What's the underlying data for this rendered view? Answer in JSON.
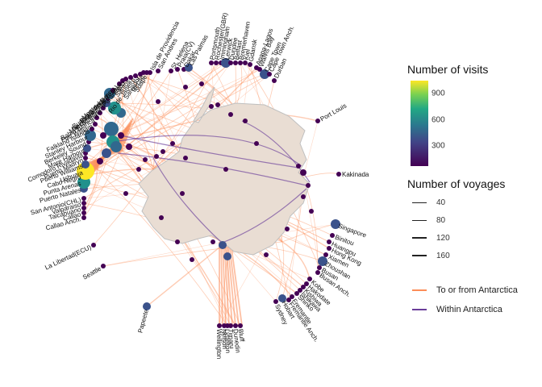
{
  "legend": {
    "visits_title": "Number of visits",
    "visits_ticks": [
      "900",
      "600",
      "300"
    ],
    "visits_tick_values": [
      900,
      600,
      300
    ],
    "visits_max": 1100,
    "visits_colors": [
      "#fde725",
      "#7ad151",
      "#22a884",
      "#2a788e",
      "#414487",
      "#440154"
    ],
    "voyages_title": "Number of voyages",
    "voyages": [
      {
        "label": "40",
        "value": 40
      },
      {
        "label": "80",
        "value": 80
      },
      {
        "label": "120",
        "value": 120
      },
      {
        "label": "160",
        "value": 160
      }
    ],
    "types": [
      {
        "label": "To or from Antarctica",
        "color": "#fc8d59"
      },
      {
        "label": "Within Antarctica",
        "color": "#6a3d9a"
      }
    ]
  },
  "ports": [
    {
      "name": "Isla de Providencia"
    },
    {
      "name": "San Andres"
    },
    {
      "name": "St. Helena"
    },
    {
      "name": "Praia(CV)"
    },
    {
      "name": "Dakar"
    },
    {
      "name": "Las Palmas"
    },
    {
      "name": "Portsmouth"
    },
    {
      "name": "Rochester(GBR)"
    },
    {
      "name": "Immingham"
    },
    {
      "name": "Lerwick"
    },
    {
      "name": "Dundee"
    },
    {
      "name": "Belfast"
    },
    {
      "name": "Bremerhaven"
    },
    {
      "name": "Kiel"
    },
    {
      "name": "Gdansk"
    },
    {
      "name": "Apapa-Lagos"
    },
    {
      "name": "Walvis Bay"
    },
    {
      "name": "Cape Town"
    },
    {
      "name": "Cape Town Anch."
    },
    {
      "name": "Durban"
    },
    {
      "name": "Port Louis"
    },
    {
      "name": "Kakinada"
    },
    {
      "name": "Singapore"
    },
    {
      "name": "Binitou"
    },
    {
      "name": "Huangpu"
    },
    {
      "name": "Hong Kong"
    },
    {
      "name": "Xiamen"
    },
    {
      "name": "Zhoushan"
    },
    {
      "name": "Busan"
    },
    {
      "name": "Busan Anch."
    },
    {
      "name": "Kobe"
    },
    {
      "name": "Hakodate"
    },
    {
      "name": "Kishiwa"
    },
    {
      "name": "Ishikawa"
    },
    {
      "name": "Shinko"
    },
    {
      "name": "Fremantle"
    },
    {
      "name": "Fremantle Anch."
    },
    {
      "name": "Hobart"
    },
    {
      "name": "Sydney"
    },
    {
      "name": "Bluff"
    },
    {
      "name": "Dunedin"
    },
    {
      "name": "Timaru"
    },
    {
      "name": "Lyttelton"
    },
    {
      "name": "Nelson"
    },
    {
      "name": "Wellington"
    },
    {
      "name": "Papeete"
    },
    {
      "name": "Seattle"
    },
    {
      "name": "La Libertad(ECU)"
    },
    {
      "name": "Callao Anch."
    },
    {
      "name": "Callao"
    },
    {
      "name": "Talcahuano"
    },
    {
      "name": "Valparaiso"
    },
    {
      "name": "San Antonio(CHL)"
    },
    {
      "name": "Puerto Natales"
    },
    {
      "name": "Punta Arenas"
    },
    {
      "name": "Cabo Negro"
    },
    {
      "name": "Ushuaia"
    },
    {
      "name": "Puerto Williams"
    },
    {
      "name": "Puerto Madryn"
    },
    {
      "name": "Comodoro Rivadavia"
    },
    {
      "name": "Mare Harbour"
    },
    {
      "name": "Berkeley Sound"
    },
    {
      "name": "Stanley Harbour"
    },
    {
      "name": "Falkland Islands"
    },
    {
      "name": "Port William"
    },
    {
      "name": "Bahia Blanca"
    },
    {
      "name": "Necochea"
    },
    {
      "name": "Mar del Plata"
    },
    {
      "name": "Buenos Aires"
    },
    {
      "name": "La Plata"
    },
    {
      "name": "Montevideo"
    },
    {
      "name": "Punta del Este"
    },
    {
      "name": "Rio Grande(BRA)"
    },
    {
      "name": "Itajai"
    },
    {
      "name": "Paranagua"
    },
    {
      "name": "Santos"
    },
    {
      "name": "Rio de Janeiro"
    },
    {
      "name": "Salvador"
    },
    {
      "name": "Recife"
    },
    {
      "name": "Suape"
    }
  ]
}
